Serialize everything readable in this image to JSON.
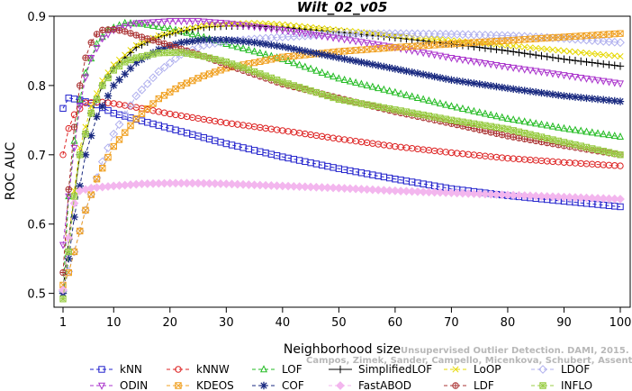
{
  "chart_data": {
    "type": "line",
    "title": "Wilt_02_v05",
    "xlabel": "Neighborhood size",
    "ylabel": "ROC AUC",
    "xlim": [
      1,
      100
    ],
    "ylim": [
      0.48,
      0.9
    ],
    "x_ticks": [
      "1",
      "10",
      "20",
      "30",
      "40",
      "50",
      "60",
      "70",
      "80",
      "90",
      "100"
    ],
    "y_ticks": [
      "0.5",
      "0.6",
      "0.7",
      "0.8",
      "0.9"
    ],
    "grid": false,
    "legend_position": "bottom",
    "series": [
      {
        "name": "kNN",
        "color": "#2222cc",
        "marker": "square",
        "dashed": true,
        "points": [
          [
            1,
            0.767
          ],
          [
            2,
            0.782
          ],
          [
            4,
            0.779
          ],
          [
            7,
            0.772
          ],
          [
            10,
            0.76
          ],
          [
            15,
            0.749
          ],
          [
            20,
            0.738
          ],
          [
            30,
            0.716
          ],
          [
            40,
            0.697
          ],
          [
            50,
            0.68
          ],
          [
            60,
            0.665
          ],
          [
            70,
            0.651
          ],
          [
            80,
            0.641
          ],
          [
            90,
            0.633
          ],
          [
            100,
            0.625
          ]
        ]
      },
      {
        "name": "kNNW",
        "color": "#dd2222",
        "marker": "circle",
        "dashed": true,
        "points": [
          [
            1,
            0.7
          ],
          [
            2,
            0.738
          ],
          [
            3,
            0.758
          ],
          [
            5,
            0.775
          ],
          [
            8,
            0.776
          ],
          [
            10,
            0.774
          ],
          [
            15,
            0.767
          ],
          [
            20,
            0.759
          ],
          [
            30,
            0.746
          ],
          [
            40,
            0.735
          ],
          [
            50,
            0.723
          ],
          [
            60,
            0.712
          ],
          [
            70,
            0.703
          ],
          [
            80,
            0.695
          ],
          [
            90,
            0.689
          ],
          [
            100,
            0.684
          ]
        ]
      },
      {
        "name": "LOF",
        "color": "#22bb22",
        "marker": "triangle-up",
        "dashed": true,
        "points": [
          [
            1,
            0.505
          ],
          [
            2,
            0.64
          ],
          [
            3,
            0.72
          ],
          [
            4,
            0.78
          ],
          [
            5,
            0.818
          ],
          [
            7,
            0.86
          ],
          [
            9,
            0.88
          ],
          [
            12,
            0.89
          ],
          [
            15,
            0.889
          ],
          [
            20,
            0.882
          ],
          [
            25,
            0.872
          ],
          [
            30,
            0.86
          ],
          [
            40,
            0.838
          ],
          [
            50,
            0.81
          ],
          [
            60,
            0.79
          ],
          [
            70,
            0.77
          ],
          [
            80,
            0.752
          ],
          [
            90,
            0.738
          ],
          [
            100,
            0.726
          ]
        ]
      },
      {
        "name": "SimplifiedLOF",
        "color": "#000000",
        "marker": "plus",
        "dashed": false,
        "points": [
          [
            1,
            0.505
          ],
          [
            2,
            0.578
          ],
          [
            3,
            0.64
          ],
          [
            4,
            0.7
          ],
          [
            6,
            0.76
          ],
          [
            8,
            0.8
          ],
          [
            10,
            0.825
          ],
          [
            14,
            0.855
          ],
          [
            18,
            0.87
          ],
          [
            22,
            0.878
          ],
          [
            26,
            0.884
          ],
          [
            30,
            0.886
          ],
          [
            35,
            0.886
          ],
          [
            40,
            0.884
          ],
          [
            50,
            0.877
          ],
          [
            60,
            0.869
          ],
          [
            70,
            0.86
          ],
          [
            80,
            0.85
          ],
          [
            90,
            0.838
          ],
          [
            100,
            0.828
          ]
        ]
      },
      {
        "name": "LoOP",
        "color": "#e6d800",
        "marker": "x",
        "dashed": true,
        "points": [
          [
            1,
            0.505
          ],
          [
            2,
            0.58
          ],
          [
            3,
            0.648
          ],
          [
            4,
            0.71
          ],
          [
            6,
            0.77
          ],
          [
            8,
            0.807
          ],
          [
            10,
            0.83
          ],
          [
            14,
            0.858
          ],
          [
            18,
            0.872
          ],
          [
            22,
            0.88
          ],
          [
            26,
            0.886
          ],
          [
            30,
            0.889
          ],
          [
            35,
            0.89
          ],
          [
            40,
            0.888
          ],
          [
            50,
            0.88
          ],
          [
            60,
            0.872
          ],
          [
            70,
            0.865
          ],
          [
            80,
            0.858
          ],
          [
            90,
            0.85
          ],
          [
            100,
            0.842
          ]
        ]
      },
      {
        "name": "LDOF",
        "color": "#b0b0ee",
        "marker": "diamond",
        "dashed": true,
        "points": [
          [
            1,
            0.503
          ],
          [
            3,
            0.56
          ],
          [
            5,
            0.62
          ],
          [
            8,
            0.69
          ],
          [
            10,
            0.73
          ],
          [
            14,
            0.785
          ],
          [
            18,
            0.82
          ],
          [
            22,
            0.845
          ],
          [
            26,
            0.858
          ],
          [
            30,
            0.864
          ],
          [
            40,
            0.87
          ],
          [
            50,
            0.874
          ],
          [
            60,
            0.875
          ],
          [
            70,
            0.874
          ],
          [
            80,
            0.872
          ],
          [
            90,
            0.868
          ],
          [
            100,
            0.862
          ]
        ]
      },
      {
        "name": "ODIN",
        "color": "#aa33cc",
        "marker": "triangle-down",
        "dashed": true,
        "points": [
          [
            1,
            0.57
          ],
          [
            2,
            0.64
          ],
          [
            3,
            0.71
          ],
          [
            4,
            0.77
          ],
          [
            5,
            0.812
          ],
          [
            6,
            0.84
          ],
          [
            8,
            0.868
          ],
          [
            10,
            0.88
          ],
          [
            14,
            0.89
          ],
          [
            20,
            0.893
          ],
          [
            25,
            0.893
          ],
          [
            30,
            0.89
          ],
          [
            40,
            0.88
          ],
          [
            50,
            0.868
          ],
          [
            60,
            0.855
          ],
          [
            70,
            0.84
          ],
          [
            80,
            0.827
          ],
          [
            90,
            0.815
          ],
          [
            100,
            0.803
          ]
        ]
      },
      {
        "name": "KDEOS",
        "color": "#f0a020",
        "marker": "square-x",
        "dashed": true,
        "points": [
          [
            1,
            0.512
          ],
          [
            2,
            0.53
          ],
          [
            3,
            0.56
          ],
          [
            5,
            0.62
          ],
          [
            7,
            0.665
          ],
          [
            10,
            0.712
          ],
          [
            14,
            0.752
          ],
          [
            18,
            0.781
          ],
          [
            22,
            0.8
          ],
          [
            26,
            0.814
          ],
          [
            30,
            0.825
          ],
          [
            40,
            0.841
          ],
          [
            50,
            0.849
          ],
          [
            60,
            0.855
          ],
          [
            70,
            0.86
          ],
          [
            80,
            0.865
          ],
          [
            90,
            0.87
          ],
          [
            100,
            0.875
          ]
        ]
      },
      {
        "name": "COF",
        "color": "#1a2a80",
        "marker": "star",
        "dashed": true,
        "points": [
          [
            1,
            0.5
          ],
          [
            2,
            0.55
          ],
          [
            3,
            0.61
          ],
          [
            4,
            0.655
          ],
          [
            5,
            0.7
          ],
          [
            7,
            0.755
          ],
          [
            10,
            0.8
          ],
          [
            14,
            0.833
          ],
          [
            18,
            0.852
          ],
          [
            22,
            0.862
          ],
          [
            26,
            0.866
          ],
          [
            30,
            0.866
          ],
          [
            35,
            0.862
          ],
          [
            40,
            0.856
          ],
          [
            50,
            0.84
          ],
          [
            60,
            0.824
          ],
          [
            70,
            0.808
          ],
          [
            80,
            0.796
          ],
          [
            90,
            0.785
          ],
          [
            100,
            0.777
          ]
        ]
      },
      {
        "name": "FastABOD",
        "color": "#f3b6ee",
        "marker": "diamond-filled",
        "dashed": true,
        "points": [
          [
            1,
            0.505
          ],
          [
            2,
            0.58
          ],
          [
            3,
            0.63
          ],
          [
            4,
            0.648
          ],
          [
            6,
            0.652
          ],
          [
            10,
            0.655
          ],
          [
            15,
            0.658
          ],
          [
            20,
            0.659
          ],
          [
            25,
            0.659
          ],
          [
            30,
            0.658
          ],
          [
            40,
            0.655
          ],
          [
            50,
            0.652
          ],
          [
            60,
            0.648
          ],
          [
            70,
            0.645
          ],
          [
            80,
            0.642
          ],
          [
            90,
            0.639
          ],
          [
            100,
            0.636
          ]
        ]
      },
      {
        "name": "LDF",
        "color": "#aa3333",
        "marker": "circle-plus",
        "dashed": true,
        "points": [
          [
            1,
            0.53
          ],
          [
            2,
            0.65
          ],
          [
            3,
            0.74
          ],
          [
            4,
            0.8
          ],
          [
            5,
            0.84
          ],
          [
            6,
            0.862
          ],
          [
            7,
            0.874
          ],
          [
            8,
            0.88
          ],
          [
            10,
            0.881
          ],
          [
            12,
            0.878
          ],
          [
            15,
            0.87
          ],
          [
            20,
            0.858
          ],
          [
            25,
            0.845
          ],
          [
            30,
            0.83
          ],
          [
            40,
            0.802
          ],
          [
            50,
            0.782
          ],
          [
            60,
            0.762
          ],
          [
            70,
            0.745
          ],
          [
            80,
            0.727
          ],
          [
            90,
            0.713
          ],
          [
            100,
            0.7
          ]
        ]
      },
      {
        "name": "INFLO",
        "color": "#99cc44",
        "marker": "square-star",
        "dashed": true,
        "points": [
          [
            1,
            0.492
          ],
          [
            2,
            0.56
          ],
          [
            3,
            0.64
          ],
          [
            4,
            0.7
          ],
          [
            6,
            0.76
          ],
          [
            8,
            0.8
          ],
          [
            10,
            0.822
          ],
          [
            12,
            0.834
          ],
          [
            14,
            0.84
          ],
          [
            18,
            0.847
          ],
          [
            22,
            0.848
          ],
          [
            26,
            0.842
          ],
          [
            30,
            0.834
          ],
          [
            35,
            0.82
          ],
          [
            40,
            0.805
          ],
          [
            50,
            0.78
          ],
          [
            60,
            0.765
          ],
          [
            70,
            0.75
          ],
          [
            80,
            0.737
          ],
          [
            90,
            0.718
          ],
          [
            100,
            0.7
          ]
        ]
      }
    ]
  },
  "credit": {
    "line1": "Unsupervised Outlier Detection. DAMI, 2015.",
    "line2": "Campos, Zimek, Sander, Campello, Micenkova, Schubert, Assent, Houle"
  }
}
